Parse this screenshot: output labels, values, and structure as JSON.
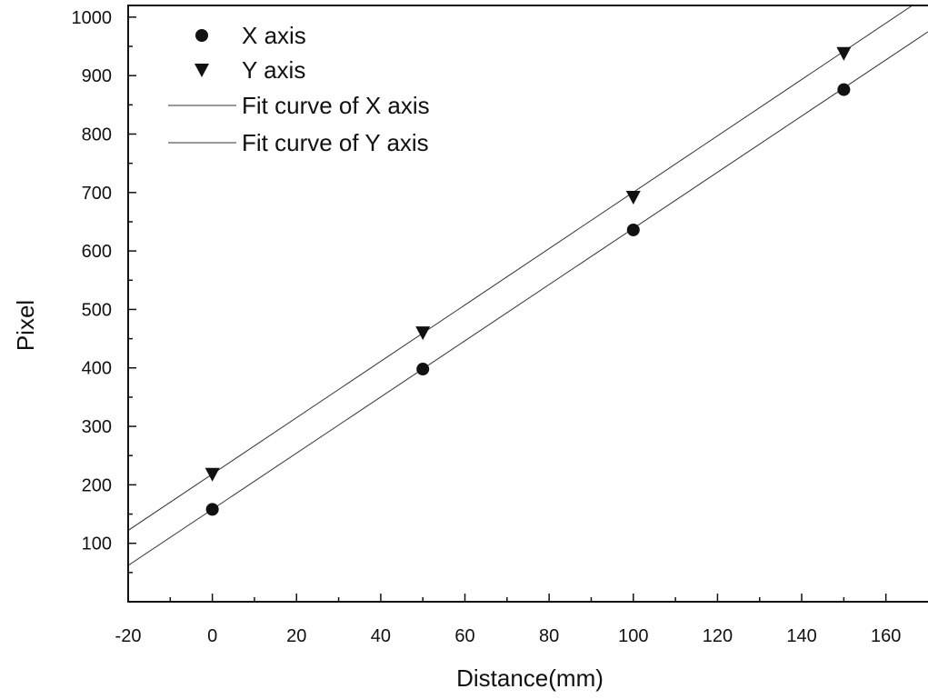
{
  "chart_data": {
    "type": "scatter",
    "xlabel": "Distance(mm)",
    "ylabel": "Pixel",
    "xlim": [
      -20,
      170
    ],
    "ylim": [
      0,
      1020
    ],
    "xticks": [
      -20,
      0,
      20,
      40,
      60,
      80,
      100,
      120,
      140,
      160
    ],
    "yticks": [
      100,
      200,
      300,
      400,
      500,
      600,
      700,
      800,
      900,
      1000
    ],
    "grid": false,
    "legend_position": "top-left",
    "series": [
      {
        "name": "X axis",
        "kind": "points",
        "marker": "circle",
        "x": [
          0,
          50,
          100,
          150
        ],
        "y": [
          158,
          398,
          636,
          876
        ]
      },
      {
        "name": "Y axis",
        "kind": "points",
        "marker": "triangle-down",
        "x": [
          0,
          50,
          100,
          150
        ],
        "y": [
          218,
          460,
          692,
          938
        ]
      },
      {
        "name": "Fit curve of X axis",
        "kind": "line",
        "x": [
          -20,
          170
        ],
        "y": [
          62,
          975
        ]
      },
      {
        "name": "Fit curve of Y axis",
        "kind": "line",
        "x": [
          -20,
          170
        ],
        "y": [
          122,
          1038
        ]
      }
    ]
  }
}
